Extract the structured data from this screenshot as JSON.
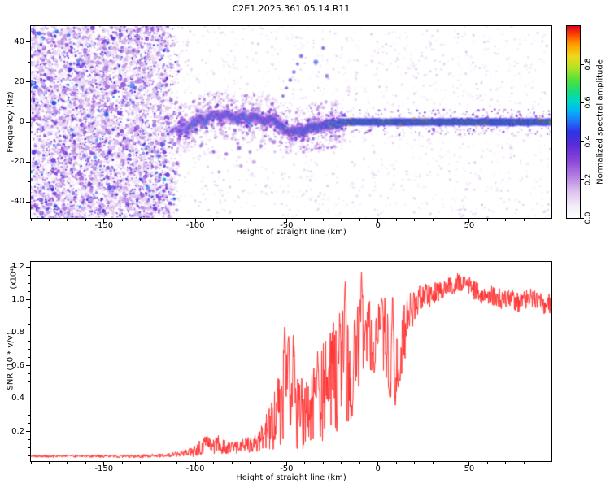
{
  "title": "C2E1.2025.361.05.14.R11",
  "colors": {
    "background": "#ffffff",
    "axis": "#000000",
    "snr_line": "#ff3232"
  },
  "chart_data": [
    {
      "type": "heatmap",
      "name": "spectrogram",
      "xlabel": "Height of straight line (km)",
      "ylabel": "Frequency (Hz)",
      "xlim": [
        -190,
        95
      ],
      "ylim": [
        -48,
        48
      ],
      "xticks": [
        -150,
        -100,
        -50,
        0,
        50
      ],
      "xtick_labels": [
        "-150",
        "-100",
        "-50",
        "0",
        "50"
      ],
      "yticks": [
        -40,
        -20,
        0,
        20,
        40
      ],
      "ytick_labels": [
        "-40",
        "-20",
        "0",
        "20",
        "40"
      ],
      "colorbar": {
        "label": "Normalized spectral amplitude",
        "ticks": [
          0,
          0.2,
          0.4,
          0.6,
          0.8
        ],
        "tick_labels": [
          "0.0",
          "0.2",
          "0.4",
          "0.6",
          "0.8"
        ],
        "range": [
          0,
          1
        ]
      },
      "colormap_stops": [
        [
          0.0,
          "#ffffff"
        ],
        [
          0.06,
          "#f5edfa"
        ],
        [
          0.14,
          "#ddc0ef"
        ],
        [
          0.22,
          "#b27de2"
        ],
        [
          0.3,
          "#8a46d8"
        ],
        [
          0.38,
          "#5c2bd8"
        ],
        [
          0.45,
          "#2d35e6"
        ],
        [
          0.51,
          "#1f7dfb"
        ],
        [
          0.56,
          "#00b8f5"
        ],
        [
          0.61,
          "#00d8c8"
        ],
        [
          0.66,
          "#17dd7a"
        ],
        [
          0.72,
          "#56e03a"
        ],
        [
          0.78,
          "#b0e426"
        ],
        [
          0.84,
          "#f0d81e"
        ],
        [
          0.9,
          "#ffa200"
        ],
        [
          0.95,
          "#ff4d00"
        ],
        [
          1.0,
          "#dd0022"
        ]
      ],
      "noise_region": {
        "x_start": -190,
        "x_end": -108,
        "description": "broadband noise speckle before signal acquisition"
      },
      "signal_track": [
        [
          -113,
          -3,
          0.5
        ],
        [
          -110,
          -5,
          0.52
        ],
        [
          -107,
          -2,
          0.55
        ],
        [
          -104,
          -4,
          0.55
        ],
        [
          -101,
          -1,
          0.58
        ],
        [
          -98,
          2,
          0.56
        ],
        [
          -95,
          0,
          0.6
        ],
        [
          -92,
          3,
          0.58
        ],
        [
          -89,
          4,
          0.56
        ],
        [
          -86,
          2,
          0.6
        ],
        [
          -83,
          4,
          0.58
        ],
        [
          -80,
          3,
          0.6
        ],
        [
          -77,
          1,
          0.61
        ],
        [
          -74,
          3,
          0.62
        ],
        [
          -71,
          1,
          0.6
        ],
        [
          -68,
          3,
          0.61
        ],
        [
          -65,
          2,
          0.62
        ],
        [
          -62,
          0,
          0.62
        ],
        [
          -59,
          2,
          0.61
        ],
        [
          -56,
          0,
          0.62
        ],
        [
          -53,
          -2,
          0.63
        ],
        [
          -50,
          -4,
          0.62
        ],
        [
          -47,
          -5,
          0.64
        ],
        [
          -44,
          -4,
          0.66
        ],
        [
          -41,
          -5,
          0.65
        ],
        [
          -38,
          -3,
          0.68
        ],
        [
          -35,
          -2,
          0.7
        ],
        [
          -32,
          -3,
          0.72
        ],
        [
          -29,
          -2,
          0.75
        ],
        [
          -26,
          -1,
          0.78
        ],
        [
          -23,
          -1,
          0.82
        ],
        [
          -20,
          0,
          0.88
        ],
        [
          -15,
          0,
          0.92
        ],
        [
          -10,
          0,
          0.95
        ],
        [
          -5,
          0,
          0.97
        ],
        [
          0,
          0,
          0.98
        ],
        [
          20,
          0,
          0.98
        ],
        [
          40,
          0,
          0.98
        ],
        [
          60,
          0,
          0.98
        ],
        [
          80,
          0,
          0.98
        ],
        [
          95,
          0,
          0.98
        ]
      ],
      "upper_blobs": [
        [
          -58,
          9,
          0.35
        ],
        [
          -52,
          13,
          0.4
        ],
        [
          -50,
          17,
          0.42
        ],
        [
          -48,
          21,
          0.4
        ],
        [
          -46,
          25,
          0.45
        ],
        [
          -44,
          29,
          0.42
        ],
        [
          -42,
          33,
          0.38
        ],
        [
          -34,
          30,
          0.46
        ],
        [
          -30,
          37,
          0.4
        ],
        [
          -28,
          23,
          0.35
        ]
      ],
      "lower_blobs": [
        [
          -97,
          -12,
          0.32
        ],
        [
          -90,
          -15,
          0.35
        ],
        [
          -83,
          -16,
          0.32
        ],
        [
          -76,
          -13,
          0.35
        ],
        [
          -70,
          -15,
          0.3
        ],
        [
          -64,
          -12,
          0.32
        ],
        [
          -57,
          -10,
          0.3
        ],
        [
          -87,
          -25,
          0.24
        ],
        [
          -75,
          -22,
          0.22
        ],
        [
          -68,
          -20,
          0.2
        ]
      ]
    },
    {
      "type": "line",
      "name": "snr",
      "xlabel": "Height of straight line (km)",
      "ylabel": "SNR (10 * v/v)",
      "scale_note": "(x10⁴)",
      "series_color": "#ff3232",
      "xlim": [
        -190,
        95
      ],
      "ylim": [
        0.02,
        1.23
      ],
      "xticks": [
        -150,
        -100,
        -50,
        0,
        50
      ],
      "xtick_labels": [
        "-150",
        "-100",
        "-50",
        "0",
        "50"
      ],
      "yticks": [
        0.2,
        0.4,
        0.6,
        0.8,
        1.0,
        1.2
      ],
      "ytick_labels": [
        "0.2",
        "0.4",
        "0.6",
        "0.8",
        "1.0",
        "1.2"
      ],
      "points": [
        [
          -190,
          0.05,
          0.008
        ],
        [
          -175,
          0.05,
          0.008
        ],
        [
          -160,
          0.05,
          0.008
        ],
        [
          -145,
          0.05,
          0.01
        ],
        [
          -130,
          0.05,
          0.01
        ],
        [
          -120,
          0.055,
          0.012
        ],
        [
          -112,
          0.06,
          0.015
        ],
        [
          -106,
          0.07,
          0.02
        ],
        [
          -101,
          0.08,
          0.035
        ],
        [
          -97,
          0.11,
          0.05
        ],
        [
          -94,
          0.13,
          0.06
        ],
        [
          -91,
          0.11,
          0.05
        ],
        [
          -88,
          0.13,
          0.06
        ],
        [
          -85,
          0.11,
          0.05
        ],
        [
          -82,
          0.1,
          0.04
        ],
        [
          -79,
          0.11,
          0.04
        ],
        [
          -76,
          0.1,
          0.04
        ],
        [
          -73,
          0.12,
          0.05
        ],
        [
          -70,
          0.12,
          0.05
        ],
        [
          -67,
          0.13,
          0.06
        ],
        [
          -64,
          0.15,
          0.08
        ],
        [
          -61,
          0.19,
          0.12
        ],
        [
          -58,
          0.24,
          0.17
        ],
        [
          -55,
          0.3,
          0.22
        ],
        [
          -52,
          0.36,
          0.27
        ],
        [
          -49,
          0.4,
          0.3
        ],
        [
          -46,
          0.38,
          0.28
        ],
        [
          -43,
          0.33,
          0.24
        ],
        [
          -40,
          0.29,
          0.2
        ],
        [
          -37,
          0.31,
          0.22
        ],
        [
          -34,
          0.36,
          0.26
        ],
        [
          -31,
          0.42,
          0.3
        ],
        [
          -28,
          0.48,
          0.32
        ],
        [
          -25,
          0.53,
          0.34
        ],
        [
          -22,
          0.58,
          0.38
        ],
        [
          -19,
          0.63,
          0.4
        ],
        [
          -16,
          0.58,
          0.36
        ],
        [
          -13,
          0.62,
          0.34
        ],
        [
          -10,
          0.68,
          0.3
        ],
        [
          -7,
          0.73,
          0.27
        ],
        [
          -4,
          0.79,
          0.24
        ],
        [
          -1,
          0.84,
          0.2
        ],
        [
          2,
          0.82,
          0.22
        ],
        [
          5,
          0.74,
          0.26
        ],
        [
          8,
          0.62,
          0.28
        ],
        [
          11,
          0.66,
          0.26
        ],
        [
          14,
          0.78,
          0.2
        ],
        [
          17,
          0.9,
          0.14
        ],
        [
          20,
          0.98,
          0.1
        ],
        [
          23,
          1.01,
          0.08
        ],
        [
          26,
          1.04,
          0.07
        ],
        [
          29,
          1.02,
          0.07
        ],
        [
          32,
          1.04,
          0.07
        ],
        [
          35,
          1.06,
          0.06
        ],
        [
          38,
          1.07,
          0.06
        ],
        [
          41,
          1.09,
          0.06
        ],
        [
          44,
          1.11,
          0.06
        ],
        [
          47,
          1.1,
          0.06
        ],
        [
          50,
          1.08,
          0.06
        ],
        [
          53,
          1.06,
          0.06
        ],
        [
          56,
          1.04,
          0.06
        ],
        [
          59,
          1.02,
          0.06
        ],
        [
          62,
          1.03,
          0.06
        ],
        [
          65,
          1.02,
          0.06
        ],
        [
          68,
          1.0,
          0.06
        ],
        [
          71,
          1.02,
          0.06
        ],
        [
          74,
          1.0,
          0.06
        ],
        [
          77,
          0.98,
          0.06
        ],
        [
          80,
          1.0,
          0.06
        ],
        [
          83,
          1.02,
          0.06
        ],
        [
          86,
          1.0,
          0.06
        ],
        [
          89,
          0.98,
          0.06
        ],
        [
          92,
          0.97,
          0.06
        ],
        [
          95,
          0.98,
          0.06
        ]
      ],
      "spikes": [
        [
          -51,
          0.87
        ],
        [
          -49,
          0.8
        ],
        [
          -46,
          0.76
        ],
        [
          -33,
          0.7
        ],
        [
          -21,
          0.92
        ],
        [
          -18,
          1.16
        ],
        [
          -13,
          0.96
        ],
        [
          -9,
          1.18
        ],
        [
          2,
          1.02
        ],
        [
          8,
          1.05
        ]
      ],
      "dips": [
        [
          -14,
          0.3
        ],
        [
          -2,
          0.55
        ],
        [
          6.5,
          0.4
        ],
        [
          9.5,
          0.36
        ],
        [
          12,
          0.5
        ]
      ]
    }
  ]
}
